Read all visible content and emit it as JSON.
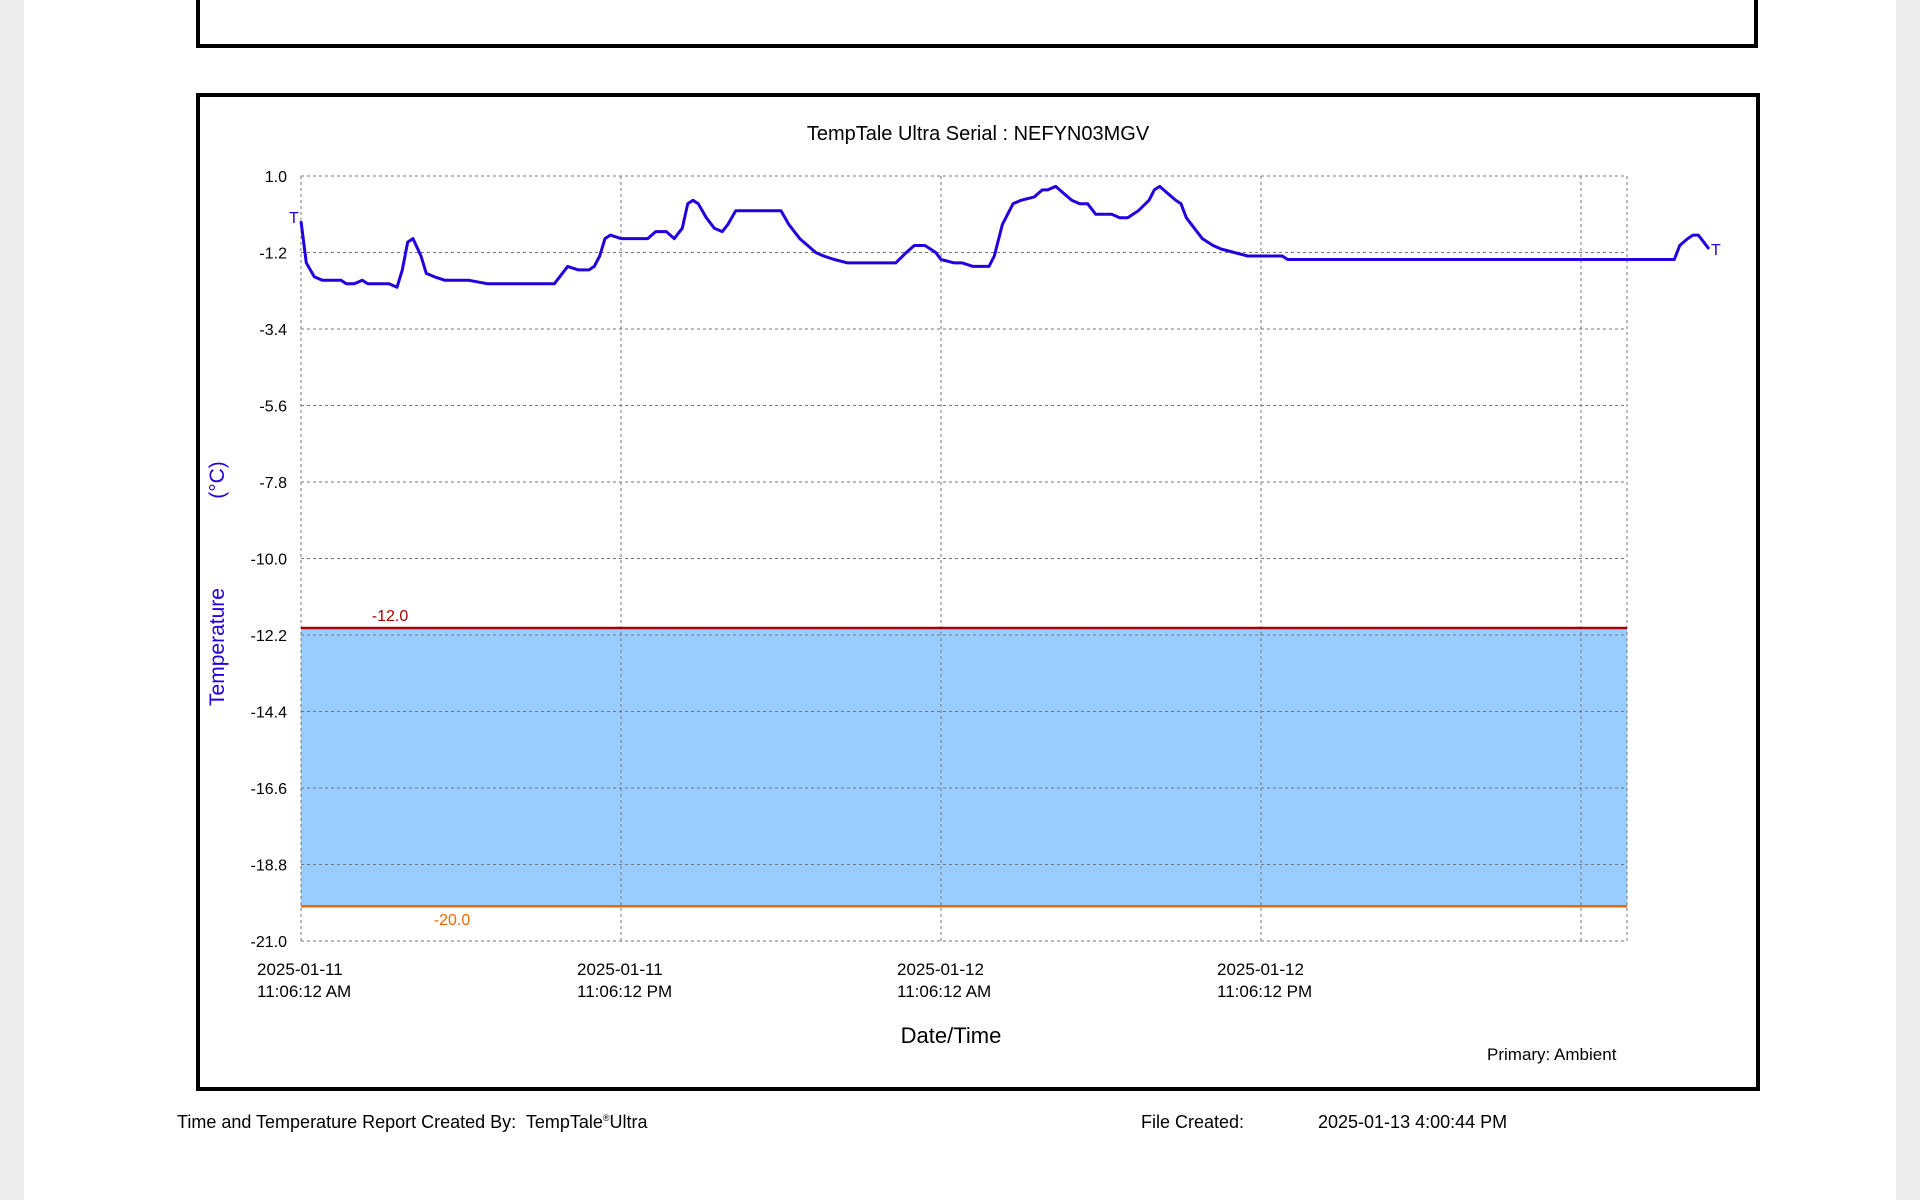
{
  "footer": {
    "created_by_label": "Time and Temperature Report Created By:",
    "product_name_a": "TempTale",
    "product_mark": "®",
    "product_name_b": "Ultra",
    "file_created_label": "File Created:",
    "file_created_value": "2025-01-13  4:00:44 PM"
  },
  "colors": {
    "line": "#2200dd",
    "band_fill": "#99ccff",
    "upper_limit": "#aa0000",
    "lower_limit": "#ee6600",
    "grid": "#777777"
  },
  "chart_data": {
    "type": "line",
    "title": "TempTale Ultra  Serial : NEFYN03MGV",
    "xlabel": "Date/Time",
    "ylabel_parts": [
      "Temperature",
      "(°C)"
    ],
    "ylim": [
      -21.0,
      1.0
    ],
    "y_ticks": [
      "1.0",
      "-1.2",
      "-3.4",
      "-5.6",
      "-7.8",
      "-10.0",
      "-12.2",
      "-14.4",
      "-16.6",
      "-18.8",
      "-21.0"
    ],
    "x_tick_labels": [
      [
        "2025-01-11",
        "11:06:12 AM"
      ],
      [
        "2025-01-11",
        "11:06:12 PM"
      ],
      [
        "2025-01-12",
        "11:06:12 AM"
      ],
      [
        "2025-01-12",
        "11:06:12 PM"
      ]
    ],
    "x_hours_per_grid": 12,
    "x_range_hours": [
      0,
      52.8
    ],
    "grid": true,
    "limits": [
      {
        "label": "-12.0",
        "value": -12.0,
        "color": "#aa0000"
      },
      {
        "label": "-20.0",
        "value": -20.0,
        "color": "#ee6600"
      }
    ],
    "range_band": [
      -20.0,
      -12.0
    ],
    "start_marker": "T",
    "end_marker": "T",
    "series_note": "Primary: Ambient",
    "series": [
      {
        "x": [
          0,
          0.2,
          0.5,
          0.8,
          1.0,
          1.5,
          1.7,
          2.0,
          2.3,
          2.5,
          2.7,
          3.0,
          3.3,
          3.6,
          3.8,
          4.0,
          4.2,
          4.5,
          4.7,
          5.0,
          5.4,
          5.8,
          6.0,
          6.3,
          7.0,
          7.5,
          8.0,
          8.5,
          9.0,
          9.5,
          9.7,
          10.0,
          10.4,
          10.8,
          11.0,
          11.2,
          11.4,
          11.6,
          12.0,
          12.5,
          13.0,
          13.3,
          13.7,
          14.0,
          14.3,
          14.5,
          14.7,
          14.9,
          15.2,
          15.5,
          15.8,
          16.0,
          16.3,
          16.5,
          16.8,
          17.0,
          17.5,
          18.0,
          18.3,
          18.7,
          19.0,
          19.3,
          19.6,
          20.0,
          20.5,
          21.0,
          21.5,
          22.0,
          22.3,
          22.7,
          23.0,
          23.4,
          23.8,
          24.0,
          24.5,
          24.8,
          25.2,
          25.5,
          25.8,
          26.0,
          26.3,
          26.7,
          27.0,
          27.5,
          27.8,
          28.0,
          28.3,
          28.6,
          28.9,
          29.2,
          29.5,
          29.8,
          30.1,
          30.4,
          30.7,
          31.0,
          31.4,
          31.8,
          32.0,
          32.2,
          32.5,
          32.8,
          33.0,
          33.2,
          33.5,
          33.8,
          34.2,
          34.5,
          35.0,
          35.5,
          36.0,
          36.5,
          36.8,
          37.0,
          37.3,
          38.0,
          39.0,
          40.0,
          45.0,
          50.0,
          51.3,
          51.5,
          51.7,
          52.0,
          52.2,
          52.4,
          52.6,
          52.8
        ],
        "y": [
          -0.3,
          -1.5,
          -1.9,
          -2.0,
          -2.0,
          -2.0,
          -2.1,
          -2.1,
          -2.0,
          -2.1,
          -2.1,
          -2.1,
          -2.1,
          -2.2,
          -1.7,
          -0.9,
          -0.8,
          -1.3,
          -1.8,
          -1.9,
          -2.0,
          -2.0,
          -2.0,
          -2.0,
          -2.1,
          -2.1,
          -2.1,
          -2.1,
          -2.1,
          -2.1,
          -1.9,
          -1.6,
          -1.7,
          -1.7,
          -1.6,
          -1.3,
          -0.8,
          -0.7,
          -0.8,
          -0.8,
          -0.8,
          -0.6,
          -0.6,
          -0.8,
          -0.5,
          0.2,
          0.3,
          0.2,
          -0.2,
          -0.5,
          -0.6,
          -0.4,
          0.0,
          0.0,
          0.0,
          0.0,
          0.0,
          0.0,
          -0.4,
          -0.8,
          -1.0,
          -1.2,
          -1.3,
          -1.4,
          -1.5,
          -1.5,
          -1.5,
          -1.5,
          -1.5,
          -1.2,
          -1.0,
          -1.0,
          -1.2,
          -1.4,
          -1.5,
          -1.5,
          -1.6,
          -1.6,
          -1.6,
          -1.3,
          -0.4,
          0.2,
          0.3,
          0.4,
          0.6,
          0.6,
          0.7,
          0.5,
          0.3,
          0.2,
          0.2,
          -0.1,
          -0.1,
          -0.1,
          -0.2,
          -0.2,
          0.0,
          0.3,
          0.6,
          0.7,
          0.5,
          0.3,
          0.2,
          -0.2,
          -0.5,
          -0.8,
          -1.0,
          -1.1,
          -1.2,
          -1.3,
          -1.3,
          -1.3,
          -1.3,
          -1.4,
          -1.4,
          -1.4,
          -1.4,
          -1.4,
          -1.4,
          -1.4,
          -1.4,
          -1.4,
          -1.0,
          -0.8,
          -0.7,
          -0.7,
          -0.9,
          -1.1
        ]
      }
    ]
  }
}
